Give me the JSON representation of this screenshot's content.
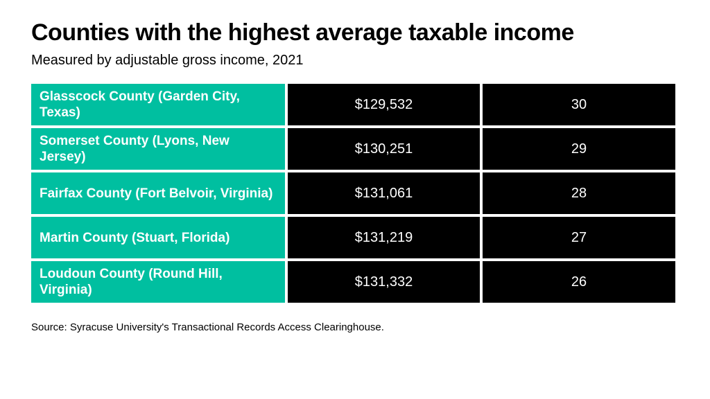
{
  "title": "Counties with the highest average taxable income",
  "subtitle": "Measured by adjustable gross income, 2021",
  "source": "Source: Syracuse University's Transactional Records Access Clearinghouse.",
  "colors": {
    "county_cell": "#00bfa0",
    "value_cell": "#000000",
    "text": "#ffffff"
  },
  "chart_data": {
    "type": "table",
    "rows": [
      {
        "county": "Glasscock County (Garden City, Texas)",
        "income": "$129,532",
        "rank": "30"
      },
      {
        "county": "Somerset County (Lyons, New Jersey)",
        "income": "$130,251",
        "rank": "29"
      },
      {
        "county": "Fairfax County (Fort Belvoir, Virginia)",
        "income": "$131,061",
        "rank": "28"
      },
      {
        "county": "Martin County (Stuart, Florida)",
        "income": "$131,219",
        "rank": "27"
      },
      {
        "county": "Loudoun County (Round Hill, Virginia)",
        "income": "$131,332",
        "rank": "26"
      }
    ]
  }
}
